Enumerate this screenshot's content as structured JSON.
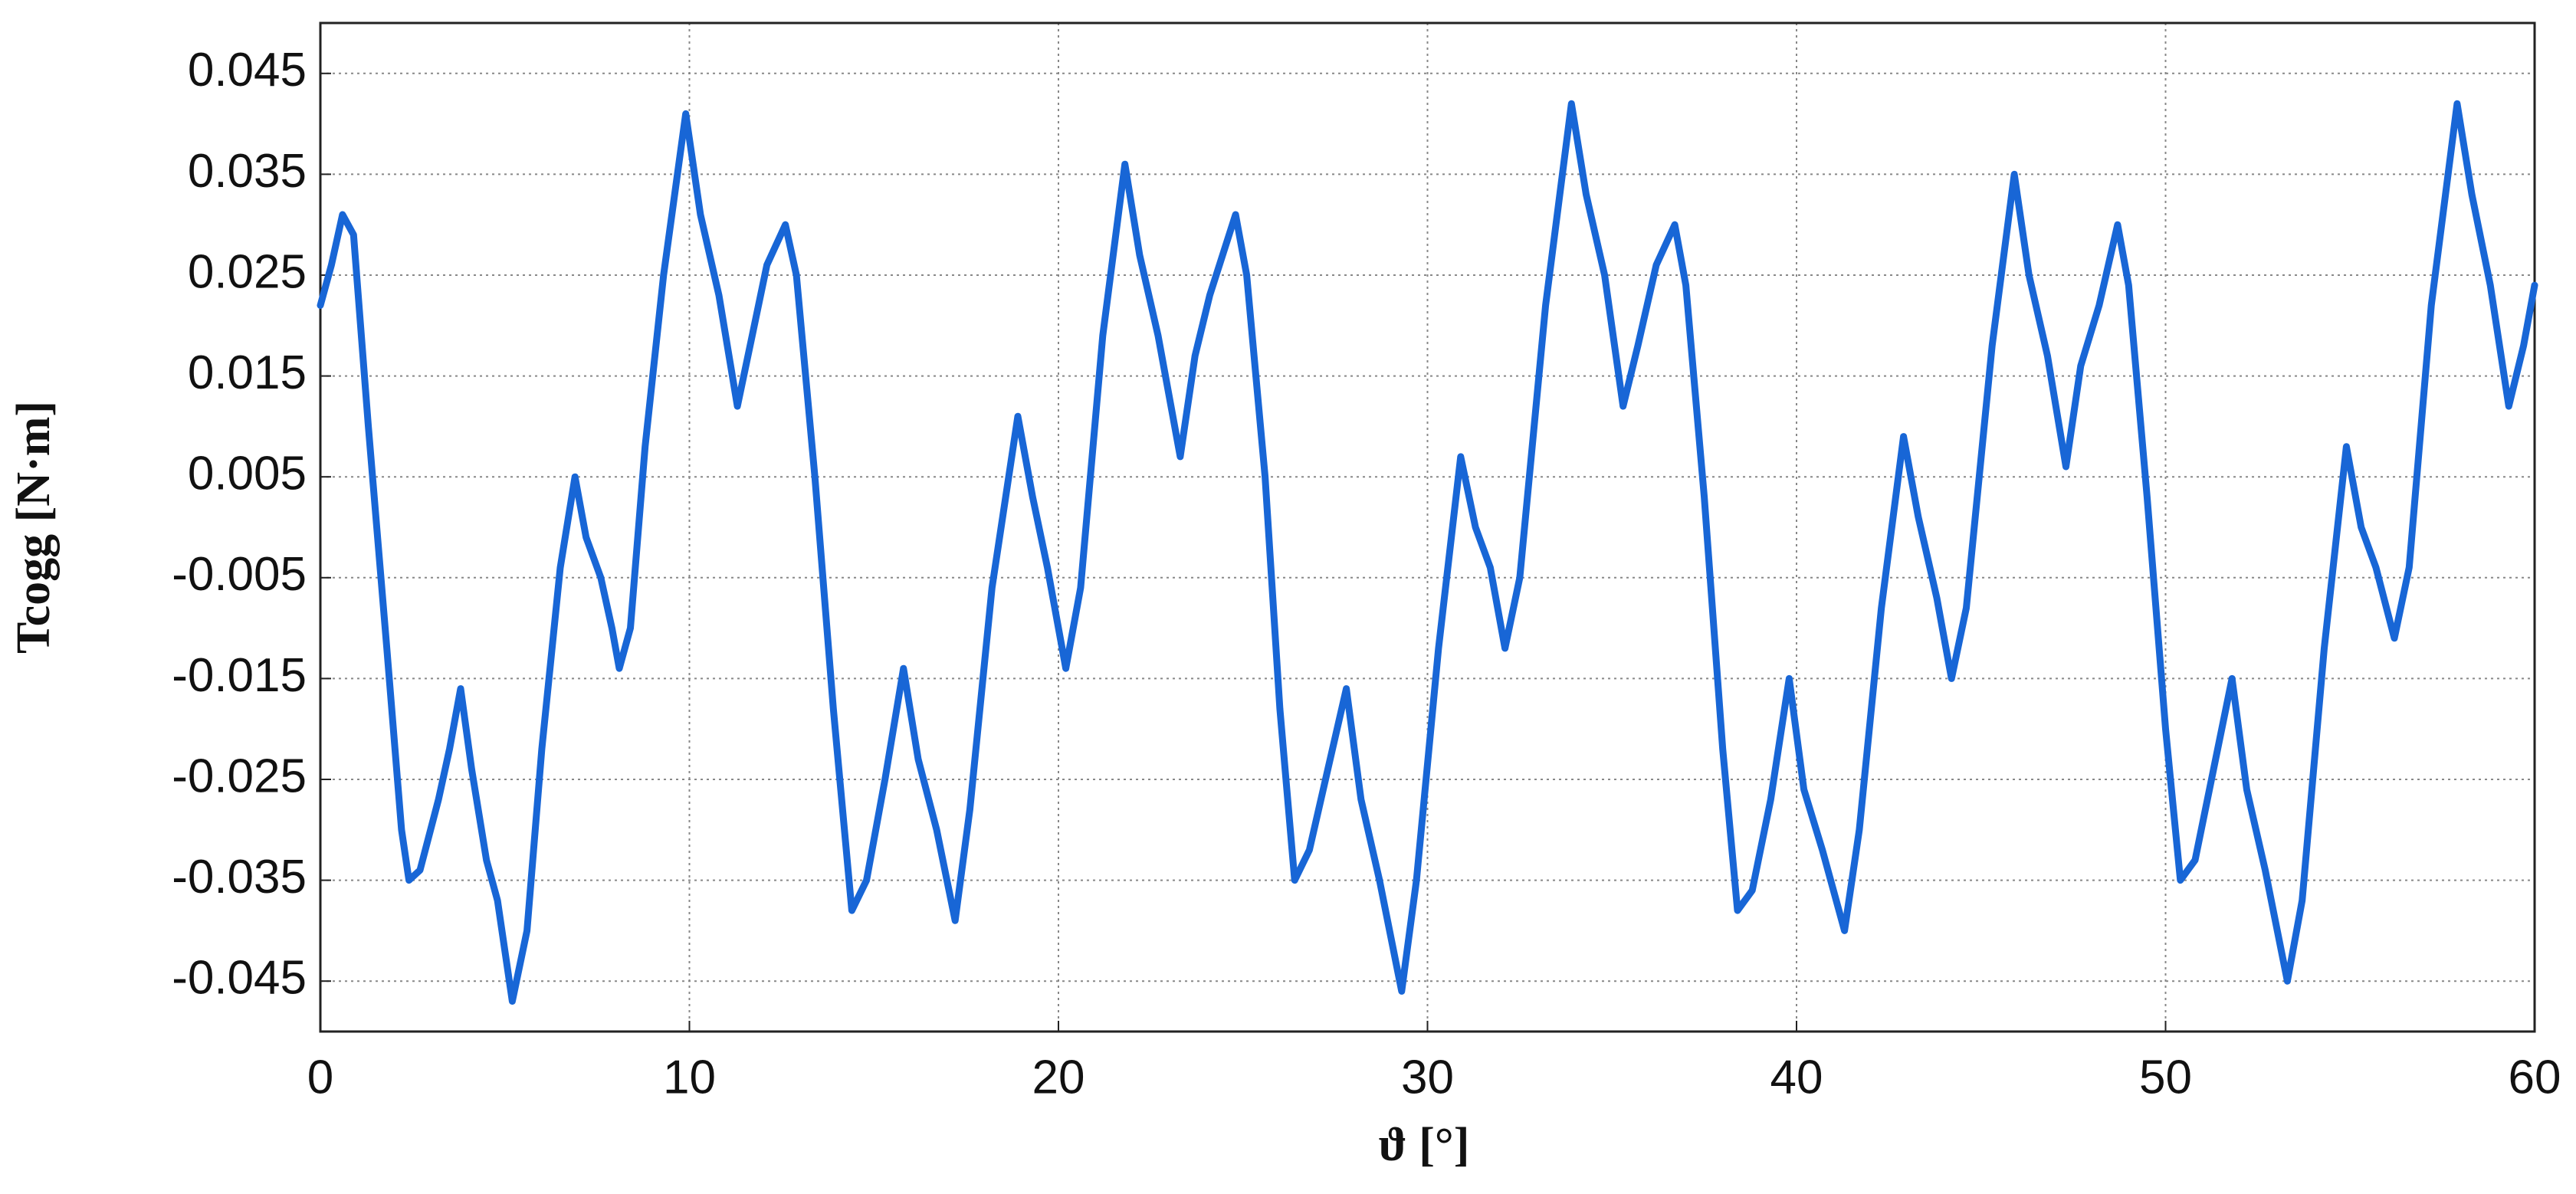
{
  "chart_data": {
    "type": "line",
    "xlabel": "ϑ [°]",
    "ylabel": "Tcogg [N·m]",
    "color": "#1866d6",
    "grid": true,
    "xlim": [
      0,
      60
    ],
    "xticks": [
      0,
      10,
      20,
      30,
      40,
      50,
      60
    ],
    "ylim": [
      -0.05,
      0.05
    ],
    "yticks": [
      -0.045,
      -0.035,
      -0.025,
      -0.015,
      -0.005,
      0.005,
      0.015,
      0.025,
      0.035,
      0.045
    ],
    "x": [
      0,
      0.3,
      0.6,
      0.9,
      1.3,
      1.8,
      2.2,
      2.4,
      2.7,
      3.2,
      3.5,
      3.8,
      4.1,
      4.5,
      4.8,
      5.2,
      5.6,
      6.0,
      6.5,
      6.9,
      7.2,
      7.6,
      7.9,
      8.1,
      8.4,
      8.8,
      9.3,
      9.9,
      10.3,
      10.8,
      11.3,
      11.7,
      12.1,
      12.6,
      12.9,
      13.4,
      13.9,
      14.4,
      14.8,
      15.3,
      15.8,
      16.2,
      16.7,
      17.2,
      17.6,
      18.2,
      18.9,
      19.3,
      19.7,
      20.2,
      20.6,
      21.2,
      21.8,
      22.2,
      22.7,
      23.3,
      23.7,
      24.1,
      24.8,
      25.1,
      25.6,
      26.0,
      26.4,
      26.8,
      27.3,
      27.8,
      28.2,
      28.7,
      29.3,
      29.7,
      30.3,
      30.9,
      31.3,
      31.7,
      32.1,
      32.5,
      33.2,
      33.9,
      34.3,
      34.8,
      35.3,
      35.7,
      36.2,
      36.7,
      37.0,
      37.5,
      38.0,
      38.4,
      38.8,
      39.3,
      39.8,
      40.2,
      40.7,
      41.3,
      41.7,
      42.3,
      42.9,
      43.3,
      43.8,
      44.2,
      44.6,
      45.3,
      45.9,
      46.3,
      46.8,
      47.3,
      47.7,
      48.2,
      48.7,
      49.0,
      49.5,
      50.0,
      50.4,
      50.8,
      51.3,
      51.8,
      52.2,
      52.7,
      53.3,
      53.7,
      54.3,
      54.9,
      55.3,
      55.7,
      56.2,
      56.6,
      57.2,
      57.9,
      58.3,
      58.8,
      59.3,
      59.7,
      60
    ],
    "values": [
      0.022,
      0.026,
      0.031,
      0.029,
      0.01,
      -0.012,
      -0.03,
      -0.035,
      -0.034,
      -0.027,
      -0.022,
      -0.016,
      -0.024,
      -0.033,
      -0.037,
      -0.047,
      -0.04,
      -0.022,
      -0.004,
      0.005,
      -0.001,
      -0.005,
      -0.01,
      -0.014,
      -0.01,
      0.008,
      0.025,
      0.041,
      0.031,
      0.023,
      0.012,
      0.019,
      0.026,
      0.03,
      0.025,
      0.005,
      -0.018,
      -0.038,
      -0.035,
      -0.025,
      -0.014,
      -0.023,
      -0.03,
      -0.039,
      -0.028,
      -0.006,
      0.011,
      0.003,
      -0.004,
      -0.014,
      -0.006,
      0.019,
      0.036,
      0.027,
      0.019,
      0.007,
      0.017,
      0.023,
      0.031,
      0.025,
      0.005,
      -0.018,
      -0.035,
      -0.032,
      -0.024,
      -0.016,
      -0.027,
      -0.035,
      -0.046,
      -0.035,
      -0.012,
      0.007,
      0.0,
      -0.004,
      -0.012,
      -0.005,
      0.022,
      0.042,
      0.033,
      0.025,
      0.012,
      0.018,
      0.026,
      0.03,
      0.024,
      0.003,
      -0.022,
      -0.038,
      -0.036,
      -0.027,
      -0.015,
      -0.026,
      -0.032,
      -0.04,
      -0.03,
      -0.008,
      0.009,
      0.001,
      -0.007,
      -0.015,
      -0.008,
      0.018,
      0.035,
      0.025,
      0.017,
      0.006,
      0.016,
      0.022,
      0.03,
      0.024,
      0.003,
      -0.02,
      -0.035,
      -0.033,
      -0.024,
      -0.015,
      -0.026,
      -0.034,
      -0.045,
      -0.037,
      -0.012,
      0.008,
      0.0,
      -0.004,
      -0.011,
      -0.004,
      0.022,
      0.042,
      0.033,
      0.024,
      0.012,
      0.018,
      0.024
    ]
  }
}
